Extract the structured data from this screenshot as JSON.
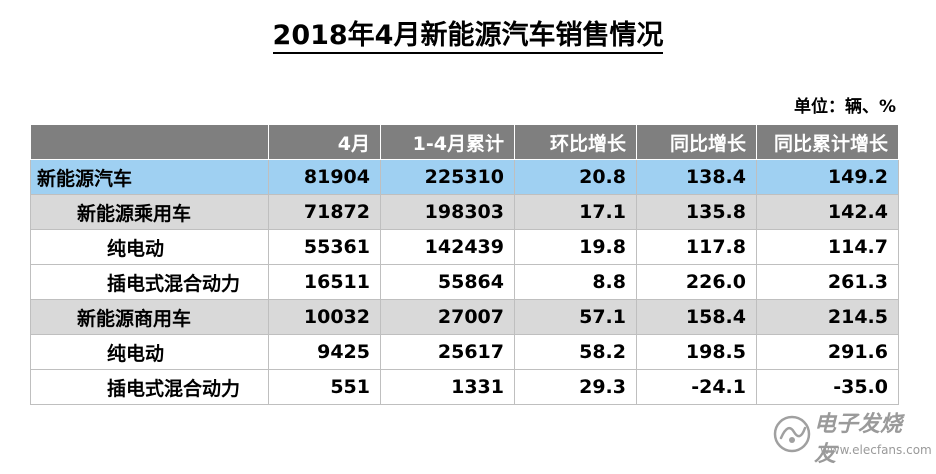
{
  "title": "2018年4月新能源汽车销售情况",
  "unit": "单位：辆、%",
  "headers": [
    "",
    "4月",
    "1-4月累计",
    "环比增长",
    "同比增长",
    "同比累计增长"
  ],
  "rows": [
    {
      "label": "新能源汽车",
      "cells": [
        "81904",
        "225310",
        "20.8",
        "138.4",
        "149.2"
      ]
    },
    {
      "label": "新能源乘用车",
      "cells": [
        "71872",
        "198303",
        "17.1",
        "135.8",
        "142.4"
      ]
    },
    {
      "label": "纯电动",
      "cells": [
        "55361",
        "142439",
        "19.8",
        "117.8",
        "114.7"
      ]
    },
    {
      "label": "插电式混合动力",
      "cells": [
        "16511",
        "55864",
        "8.8",
        "226.0",
        "261.3"
      ]
    },
    {
      "label": "新能源商用车",
      "cells": [
        "10032",
        "27007",
        "57.1",
        "158.4",
        "214.5"
      ]
    },
    {
      "label": "纯电动",
      "cells": [
        "9425",
        "25617",
        "58.2",
        "198.5",
        "291.6"
      ]
    },
    {
      "label": "插电式混合动力",
      "cells": [
        "551",
        "1331",
        "29.3",
        "-24.1",
        "-35.0"
      ]
    }
  ],
  "watermark": {
    "cn": "电子发烧友",
    "en": "www.elecfans.com"
  },
  "colors": {
    "header_bg": "#7f7f7f",
    "total_row_bg": "#9fd0f2",
    "category_row_bg": "#d9d9d9"
  }
}
